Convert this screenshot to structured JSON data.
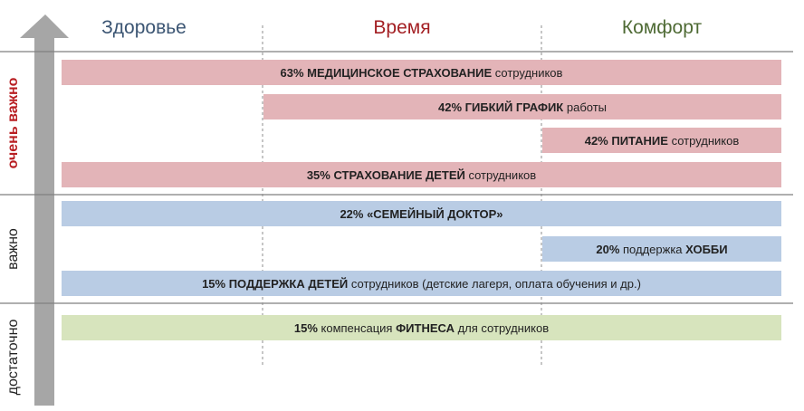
{
  "chart_data": {
    "type": "bar",
    "columns": [
      {
        "label": "Здоровье",
        "color": "#3b5573"
      },
      {
        "label": "Время",
        "color": "#a31f23"
      },
      {
        "label": "Комфорт",
        "color": "#4e6a34"
      }
    ],
    "levels": [
      {
        "label": "очень важно",
        "color": "#b81e22",
        "bold": true
      },
      {
        "label": "важно",
        "color": "#222222",
        "bold": false
      },
      {
        "label": "достаточно",
        "color": "#222222",
        "bold": false
      }
    ],
    "series": [
      {
        "value": 63,
        "level": 0,
        "span": [
          0,
          3
        ],
        "color": "#e3b4b8",
        "label": [
          {
            "t": "63% МЕДИЦИНСКОЕ СТРАХОВАНИЕ",
            "b": true
          },
          {
            "t": " сотрудников",
            "b": false
          }
        ]
      },
      {
        "value": 42,
        "level": 0,
        "span": [
          1,
          3
        ],
        "color": "#e3b4b8",
        "label": [
          {
            "t": "42% ГИБКИЙ ГРАФИК",
            "b": true
          },
          {
            "t": " работы",
            "b": false
          }
        ]
      },
      {
        "value": 42,
        "level": 0,
        "span": [
          2,
          3
        ],
        "color": "#e3b4b8",
        "label": [
          {
            "t": "42% ПИТАНИЕ",
            "b": true
          },
          {
            "t": " сотрудников",
            "b": false
          }
        ]
      },
      {
        "value": 35,
        "level": 0,
        "span": [
          0,
          3
        ],
        "color": "#e3b4b8",
        "label": [
          {
            "t": "35% СТРАХОВАНИЕ ДЕТЕЙ",
            "b": true
          },
          {
            "t": " сотрудников",
            "b": false
          }
        ]
      },
      {
        "value": 22,
        "level": 1,
        "span": [
          0,
          3
        ],
        "color": "#b9cce4",
        "label": [
          {
            "t": "22% «СЕМЕЙНЫЙ ДОКТОР»",
            "b": true
          }
        ]
      },
      {
        "value": 20,
        "level": 1,
        "span": [
          2,
          3
        ],
        "color": "#b9cce4",
        "label": [
          {
            "t": "20%",
            "b": true
          },
          {
            "t": " поддержка ",
            "b": false
          },
          {
            "t": "ХОББИ",
            "b": true
          }
        ]
      },
      {
        "value": 15,
        "level": 1,
        "span": [
          0,
          3
        ],
        "color": "#b9cce4",
        "label": [
          {
            "t": "15% ПОДДЕРЖКА ДЕТЕЙ",
            "b": true
          },
          {
            "t": " сотрудников (детские лагеря, оплата обучения и др.)",
            "b": false
          }
        ]
      },
      {
        "value": 15,
        "level": 2,
        "span": [
          0,
          3
        ],
        "color": "#d7e4bd",
        "label": [
          {
            "t": "15%",
            "b": true
          },
          {
            "t": " компенсация ",
            "b": false
          },
          {
            "t": "ФИТНЕСА",
            "b": true
          },
          {
            "t": " для сотрудников",
            "b": false
          }
        ]
      }
    ],
    "arrow_color": "#a6a6a6",
    "grid_color": "#7f7f7f"
  }
}
